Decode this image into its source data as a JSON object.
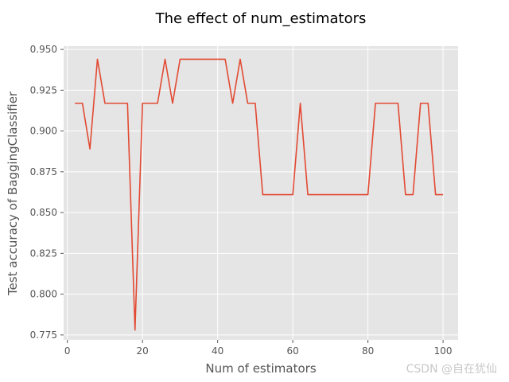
{
  "chart_data": {
    "type": "line",
    "title": "The effect of num_estimators",
    "xlabel": "Num of estimators",
    "ylabel": "Test accuracy of BaggingClassifier",
    "xlim": [
      -1,
      104
    ],
    "ylim": [
      0.772,
      0.952
    ],
    "x_ticks": [
      0,
      20,
      40,
      60,
      80,
      100
    ],
    "x_tick_labels": [
      "0",
      "20",
      "40",
      "60",
      "80",
      "100"
    ],
    "y_ticks": [
      0.775,
      0.8,
      0.825,
      0.85,
      0.875,
      0.9,
      0.925,
      0.95
    ],
    "y_tick_labels": [
      "0.775",
      "0.800",
      "0.825",
      "0.850",
      "0.875",
      "0.900",
      "0.925",
      "0.950"
    ],
    "grid": true,
    "style": "ggplot",
    "series": [
      {
        "name": "test accuracy",
        "color": "#e24a33",
        "x": [
          2,
          4,
          6,
          8,
          10,
          12,
          14,
          16,
          18,
          20,
          22,
          24,
          26,
          28,
          30,
          32,
          34,
          36,
          38,
          40,
          42,
          44,
          46,
          48,
          50,
          52,
          54,
          56,
          58,
          60,
          62,
          64,
          66,
          68,
          70,
          72,
          74,
          76,
          78,
          80,
          82,
          84,
          86,
          88,
          90,
          92,
          94,
          96,
          98,
          100
        ],
        "y": [
          0.917,
          0.917,
          0.889,
          0.944,
          0.917,
          0.917,
          0.917,
          0.917,
          0.778,
          0.917,
          0.917,
          0.917,
          0.944,
          0.917,
          0.944,
          0.944,
          0.944,
          0.944,
          0.944,
          0.944,
          0.944,
          0.917,
          0.944,
          0.917,
          0.917,
          0.861,
          0.861,
          0.861,
          0.861,
          0.861,
          0.917,
          0.861,
          0.861,
          0.861,
          0.861,
          0.861,
          0.861,
          0.861,
          0.861,
          0.861,
          0.917,
          0.917,
          0.917,
          0.917,
          0.861,
          0.861,
          0.917,
          0.917,
          0.861,
          0.861
        ]
      }
    ]
  },
  "watermark": "CSDN @自在犹仙"
}
